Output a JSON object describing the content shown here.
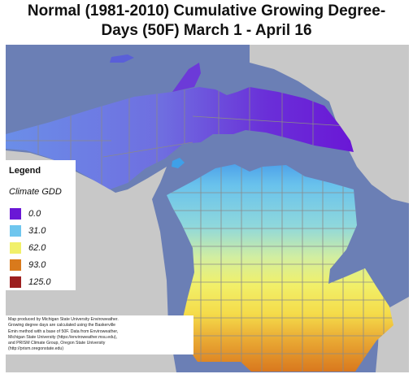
{
  "title_line1": "Normal (1981-2010) Cumulative Growing Degree-",
  "title_line2": "Days (50F) March 1 - April 16",
  "legend": {
    "title": "Legend",
    "subtitle": "Climate GDD",
    "items": [
      {
        "label": "0.0",
        "color": "#6a17d6"
      },
      {
        "label": "31.0",
        "color": "#6fc6ee"
      },
      {
        "label": "62.0",
        "color": "#f1f06a"
      },
      {
        "label": "93.0",
        "color": "#d97a1c"
      },
      {
        "label": "125.0",
        "color": "#9c1f1f"
      }
    ]
  },
  "credit_lines": [
    "Map produced by Michigan State University Enviroweather.",
    "Growing degree days are calculated using the Baskerville",
    "Emin method with a base of 50F.  Data from Enviroweather,",
    "Michigan State University (https://enviroweather.msu.edu),",
    "and PRISM Climate Group, Oregon State University",
    "(http://prism.oregonstate.edu)"
  ],
  "colors": {
    "water": "#6b7fb5",
    "land_other": "#c8c8c8",
    "county_lines": "#8a8a8a"
  }
}
